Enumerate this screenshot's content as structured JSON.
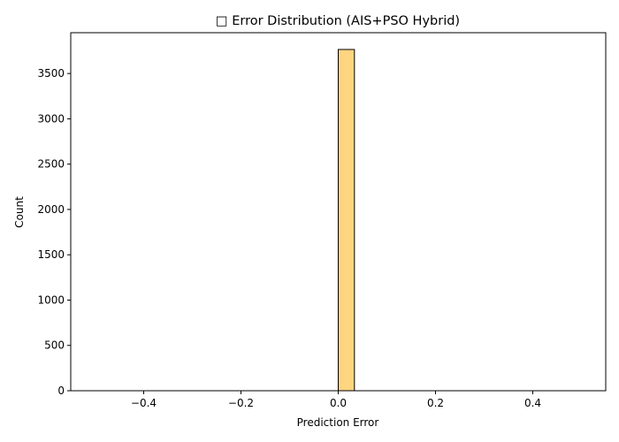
{
  "chart_data": {
    "type": "bar",
    "title": "□ Error Distribution (AIS+PSO Hybrid)",
    "xlabel": "Prediction Error",
    "ylabel": "Count",
    "xlim": [
      -0.55,
      0.55
    ],
    "ylim": [
      0,
      3950
    ],
    "grid": false,
    "legend": "none",
    "bar_color": "#ffd580",
    "edge_color": "#000000",
    "x_ticks": [
      -0.4,
      -0.2,
      0.0,
      0.2,
      0.4
    ],
    "x_tick_labels": [
      "−0.4",
      "−0.2",
      "0.0",
      "0.2",
      "0.4"
    ],
    "y_ticks": [
      0,
      500,
      1000,
      1500,
      2000,
      2500,
      3000,
      3500
    ],
    "y_tick_labels": [
      "0",
      "500",
      "1000",
      "1500",
      "2000",
      "2500",
      "3000",
      "3500"
    ],
    "bins": [
      {
        "x0": 0.0,
        "x1": 0.0333,
        "count": 3765
      }
    ],
    "baseline": {
      "x0": -0.5,
      "x1": 0.5
    }
  }
}
